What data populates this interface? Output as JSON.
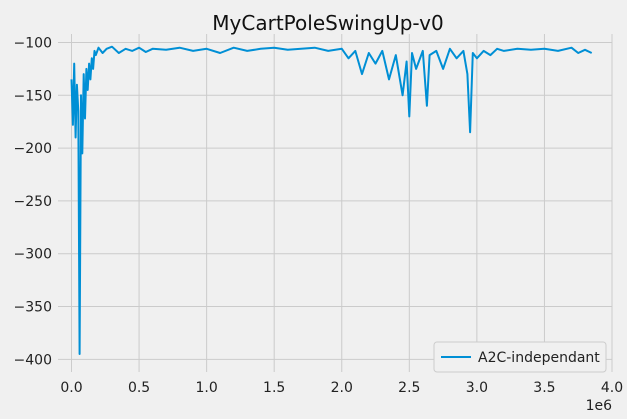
{
  "chart_data": {
    "type": "line",
    "title": "MyCartPoleSwingUp-v0",
    "xlabel": "",
    "ylabel": "",
    "x_scale_label": "1e6",
    "xlim": [
      -0.1,
      4.0
    ],
    "ylim": [
      -412,
      -92
    ],
    "x_ticks": [
      0.0,
      0.5,
      1.0,
      1.5,
      2.0,
      2.5,
      3.0,
      3.5,
      4.0
    ],
    "x_tick_labels": [
      "0.0",
      "0.5",
      "1.0",
      "1.5",
      "2.0",
      "2.5",
      "3.0",
      "3.5",
      "4.0"
    ],
    "y_ticks": [
      -100,
      -150,
      -200,
      -250,
      -300,
      -350,
      -400
    ],
    "y_tick_labels": [
      "−100",
      "−150",
      "−200",
      "−250",
      "−300",
      "−350",
      "−400"
    ],
    "grid": true,
    "legend_position": "bottom-right",
    "series": [
      {
        "name": "A2C-independant",
        "color": "#008fd5",
        "x": [
          0.0,
          0.01,
          0.02,
          0.03,
          0.04,
          0.05,
          0.06,
          0.07,
          0.08,
          0.09,
          0.1,
          0.11,
          0.12,
          0.13,
          0.14,
          0.15,
          0.16,
          0.17,
          0.18,
          0.2,
          0.23,
          0.26,
          0.3,
          0.35,
          0.4,
          0.45,
          0.5,
          0.55,
          0.6,
          0.7,
          0.8,
          0.9,
          1.0,
          1.1,
          1.2,
          1.3,
          1.4,
          1.5,
          1.6,
          1.7,
          1.8,
          1.9,
          2.0,
          2.05,
          2.1,
          2.15,
          2.2,
          2.25,
          2.3,
          2.35,
          2.4,
          2.45,
          2.48,
          2.5,
          2.52,
          2.55,
          2.6,
          2.63,
          2.65,
          2.7,
          2.75,
          2.8,
          2.85,
          2.9,
          2.93,
          2.95,
          2.97,
          3.0,
          3.05,
          3.1,
          3.15,
          3.2,
          3.3,
          3.4,
          3.5,
          3.6,
          3.7,
          3.75,
          3.8,
          3.85
        ],
        "values": [
          -135,
          -178,
          -120,
          -190,
          -140,
          -165,
          -395,
          -150,
          -205,
          -130,
          -172,
          -125,
          -145,
          -120,
          -135,
          -115,
          -125,
          -108,
          -112,
          -105,
          -110,
          -106,
          -104,
          -110,
          -106,
          -108,
          -105,
          -109,
          -106,
          -107,
          -105,
          -108,
          -106,
          -110,
          -105,
          -108,
          -106,
          -105,
          -107,
          -106,
          -105,
          -108,
          -106,
          -115,
          -108,
          -130,
          -110,
          -120,
          -108,
          -135,
          -112,
          -150,
          -118,
          -170,
          -110,
          -125,
          -108,
          -160,
          -112,
          -108,
          -125,
          -106,
          -115,
          -108,
          -130,
          -185,
          -110,
          -115,
          -108,
          -112,
          -106,
          -108,
          -106,
          -107,
          -106,
          -108,
          -105,
          -110,
          -107,
          -110
        ]
      }
    ]
  }
}
